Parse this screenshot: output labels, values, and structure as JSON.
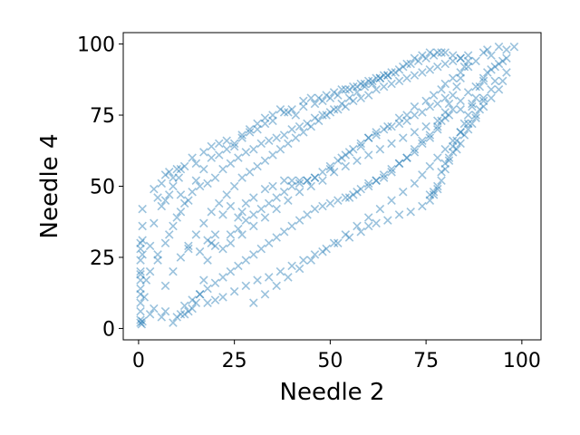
{
  "chart_data": {
    "type": "scatter",
    "title": "",
    "xlabel": "Needle 2",
    "ylabel": "Needle 4",
    "xlim": [
      -4,
      105
    ],
    "ylim": [
      -4,
      104
    ],
    "xticks": [
      0,
      25,
      50,
      75,
      100
    ],
    "yticks": [
      0,
      25,
      50,
      75,
      100
    ],
    "xtick_labels": [
      "0",
      "25",
      "50",
      "75",
      "100"
    ],
    "ytick_labels": [
      "0",
      "25",
      "50",
      "75",
      "100"
    ],
    "grid": false,
    "marker": "x",
    "color": "#1f77b4",
    "alpha": 0.45,
    "points": [
      [
        0.5,
        2
      ],
      [
        0.5,
        3
      ],
      [
        0.8,
        1.5
      ],
      [
        1,
        2.5
      ],
      [
        0.5,
        6
      ],
      [
        0.5,
        9
      ],
      [
        0.5,
        12
      ],
      [
        0.5,
        14
      ],
      [
        0.5,
        17
      ],
      [
        0.5,
        19
      ],
      [
        0.5,
        20
      ],
      [
        0.5,
        24
      ],
      [
        0.5,
        28
      ],
      [
        0.5,
        30
      ],
      [
        1,
        31
      ],
      [
        1,
        36
      ],
      [
        1,
        42
      ],
      [
        1,
        26
      ],
      [
        2,
        17
      ],
      [
        1.5,
        11
      ],
      [
        3,
        5
      ],
      [
        4,
        7
      ],
      [
        5,
        46
      ],
      [
        4,
        49
      ],
      [
        6,
        51
      ],
      [
        7,
        45
      ],
      [
        7,
        54
      ],
      [
        8,
        55
      ],
      [
        9,
        50
      ],
      [
        10,
        56
      ],
      [
        10.5,
        53
      ],
      [
        11,
        47
      ],
      [
        11,
        56
      ],
      [
        6,
        4
      ],
      [
        7,
        6
      ],
      [
        9,
        2
      ],
      [
        10,
        4
      ],
      [
        11,
        5
      ],
      [
        13,
        6
      ],
      [
        15,
        9
      ],
      [
        16,
        12
      ],
      [
        17,
        17
      ],
      [
        18,
        24
      ],
      [
        19,
        30
      ],
      [
        20,
        33
      ],
      [
        22,
        40
      ],
      [
        24,
        43
      ],
      [
        26,
        39
      ],
      [
        27,
        41
      ],
      [
        28,
        44
      ],
      [
        30,
        46
      ],
      [
        33,
        49
      ],
      [
        35,
        50
      ],
      [
        38,
        52
      ],
      [
        40,
        52
      ],
      [
        42,
        52
      ],
      [
        44,
        52
      ],
      [
        46,
        53
      ],
      [
        50,
        56
      ],
      [
        53,
        60
      ],
      [
        55,
        62
      ],
      [
        58,
        64
      ],
      [
        60,
        67
      ],
      [
        62,
        69
      ],
      [
        65,
        71
      ],
      [
        68,
        74
      ],
      [
        70,
        75
      ],
      [
        72,
        78
      ],
      [
        75,
        80
      ],
      [
        77,
        82
      ],
      [
        79,
        84
      ],
      [
        80,
        86
      ],
      [
        82,
        88
      ],
      [
        84,
        90
      ],
      [
        86,
        92
      ],
      [
        88,
        94
      ],
      [
        90,
        97
      ],
      [
        91,
        98
      ],
      [
        92,
        96
      ],
      [
        94,
        99
      ],
      [
        96,
        98
      ],
      [
        98,
        99
      ],
      [
        95,
        94
      ],
      [
        93,
        92
      ],
      [
        91,
        90
      ],
      [
        90,
        87
      ],
      [
        89,
        85
      ],
      [
        88,
        81
      ],
      [
        87,
        78
      ],
      [
        86,
        75
      ],
      [
        85,
        72
      ],
      [
        84,
        69
      ],
      [
        83,
        66
      ],
      [
        82,
        64
      ],
      [
        81,
        60
      ],
      [
        80,
        56
      ],
      [
        79,
        52
      ],
      [
        78,
        49
      ],
      [
        77,
        47
      ],
      [
        76,
        45
      ],
      [
        74,
        43
      ],
      [
        71,
        41
      ],
      [
        68,
        40
      ],
      [
        65,
        38
      ],
      [
        62,
        37
      ],
      [
        60,
        36
      ],
      [
        58,
        34
      ],
      [
        55,
        32
      ],
      [
        52,
        30
      ],
      [
        49,
        28
      ],
      [
        46,
        26
      ],
      [
        43,
        24
      ],
      [
        40,
        22
      ],
      [
        37,
        20
      ],
      [
        34,
        18
      ],
      [
        31,
        17
      ],
      [
        28,
        15
      ],
      [
        25,
        13
      ],
      [
        22,
        11
      ],
      [
        20,
        10
      ],
      [
        18,
        9
      ],
      [
        14,
        7
      ],
      [
        12,
        5
      ],
      [
        3,
        20
      ],
      [
        5,
        24
      ],
      [
        7,
        30
      ],
      [
        9,
        36
      ],
      [
        11,
        41
      ],
      [
        13,
        45
      ],
      [
        15,
        52
      ],
      [
        17,
        56
      ],
      [
        19,
        60
      ],
      [
        21,
        61
      ],
      [
        23,
        63
      ],
      [
        25,
        65
      ],
      [
        27,
        68
      ],
      [
        29,
        69
      ],
      [
        31,
        70
      ],
      [
        33,
        72
      ],
      [
        35,
        73
      ],
      [
        38,
        76
      ],
      [
        40,
        77
      ],
      [
        43,
        78
      ],
      [
        46,
        79
      ],
      [
        48,
        80
      ],
      [
        50,
        81
      ],
      [
        52,
        82
      ],
      [
        54,
        84
      ],
      [
        56,
        85
      ],
      [
        58,
        86
      ],
      [
        60,
        87
      ],
      [
        62,
        88
      ],
      [
        64,
        89
      ],
      [
        66,
        90
      ],
      [
        68,
        91
      ],
      [
        70,
        93
      ],
      [
        72,
        95
      ],
      [
        74,
        96
      ],
      [
        76,
        97
      ],
      [
        78,
        97
      ],
      [
        80,
        97
      ],
      [
        82,
        96
      ],
      [
        84,
        95
      ],
      [
        86,
        94
      ],
      [
        85,
        92
      ],
      [
        84,
        88
      ],
      [
        83,
        85
      ],
      [
        82,
        82
      ],
      [
        81,
        79
      ],
      [
        80,
        76
      ],
      [
        79,
        73
      ],
      [
        78,
        70
      ],
      [
        76,
        67
      ],
      [
        74,
        65
      ],
      [
        72,
        62
      ],
      [
        70,
        60
      ],
      [
        68,
        58
      ],
      [
        66,
        55
      ],
      [
        64,
        54
      ],
      [
        62,
        52
      ],
      [
        60,
        51
      ],
      [
        58,
        49
      ],
      [
        56,
        47
      ],
      [
        54,
        46
      ],
      [
        52,
        45
      ],
      [
        50,
        44
      ],
      [
        48,
        43
      ],
      [
        46,
        42
      ],
      [
        44,
        40
      ],
      [
        42,
        38
      ],
      [
        40,
        36
      ],
      [
        38,
        34
      ],
      [
        36,
        32
      ],
      [
        34,
        30
      ],
      [
        32,
        28
      ],
      [
        30,
        26
      ],
      [
        28,
        24
      ],
      [
        26,
        22
      ],
      [
        24,
        20
      ],
      [
        22,
        18
      ],
      [
        20,
        16
      ],
      [
        18,
        14
      ],
      [
        16,
        12
      ],
      [
        14,
        10
      ],
      [
        12,
        8
      ],
      [
        5,
        26
      ],
      [
        8,
        33
      ],
      [
        10,
        39
      ],
      [
        12,
        44
      ],
      [
        14,
        48
      ],
      [
        16,
        50
      ],
      [
        18,
        51
      ],
      [
        20,
        53
      ],
      [
        22,
        56
      ],
      [
        24,
        58
      ],
      [
        26,
        60
      ],
      [
        28,
        62
      ],
      [
        30,
        63
      ],
      [
        32,
        65
      ],
      [
        34,
        66
      ],
      [
        36,
        67
      ],
      [
        38,
        68
      ],
      [
        40,
        70
      ],
      [
        42,
        71
      ],
      [
        44,
        72
      ],
      [
        46,
        74
      ],
      [
        48,
        75
      ],
      [
        50,
        76
      ],
      [
        52,
        77
      ],
      [
        54,
        78
      ],
      [
        56,
        80
      ],
      [
        58,
        81
      ],
      [
        60,
        82
      ],
      [
        62,
        84
      ],
      [
        64,
        85
      ],
      [
        66,
        86
      ],
      [
        68,
        87
      ],
      [
        70,
        88
      ],
      [
        72,
        89
      ],
      [
        74,
        90
      ],
      [
        76,
        91
      ],
      [
        78,
        92
      ],
      [
        80,
        93
      ],
      [
        82,
        94
      ],
      [
        84,
        95
      ],
      [
        86,
        96
      ],
      [
        30,
        9
      ],
      [
        33,
        12
      ],
      [
        36,
        15
      ],
      [
        39,
        18
      ],
      [
        42,
        21
      ],
      [
        45,
        24
      ],
      [
        48,
        27
      ],
      [
        51,
        30
      ],
      [
        54,
        33
      ],
      [
        57,
        36
      ],
      [
        60,
        39
      ],
      [
        63,
        42
      ],
      [
        66,
        45
      ],
      [
        69,
        48
      ],
      [
        72,
        51
      ],
      [
        74,
        54
      ],
      [
        76,
        57
      ],
      [
        78,
        60
      ],
      [
        80,
        63
      ],
      [
        82,
        66
      ],
      [
        84,
        69
      ],
      [
        86,
        72
      ],
      [
        88,
        75
      ],
      [
        90,
        78
      ],
      [
        92,
        81
      ],
      [
        94,
        84
      ],
      [
        95,
        87
      ],
      [
        96,
        90
      ],
      [
        24,
        30
      ],
      [
        27,
        33
      ],
      [
        30,
        36
      ],
      [
        33,
        39
      ],
      [
        36,
        42
      ],
      [
        39,
        45
      ],
      [
        42,
        48
      ],
      [
        45,
        50
      ],
      [
        48,
        52
      ],
      [
        51,
        55
      ],
      [
        54,
        57
      ],
      [
        57,
        59
      ],
      [
        60,
        61
      ],
      [
        63,
        63
      ],
      [
        66,
        65
      ],
      [
        69,
        67
      ],
      [
        72,
        69
      ],
      [
        75,
        71
      ],
      [
        78,
        73
      ],
      [
        81,
        75
      ],
      [
        84,
        77
      ],
      [
        87,
        79
      ],
      [
        90,
        81
      ],
      [
        92,
        84
      ],
      [
        93,
        87
      ],
      [
        7,
        15
      ],
      [
        9,
        20
      ],
      [
        11,
        25
      ],
      [
        13,
        29
      ],
      [
        15,
        33
      ],
      [
        17,
        37
      ],
      [
        19,
        41
      ],
      [
        21,
        44
      ],
      [
        23,
        47
      ],
      [
        25,
        50
      ],
      [
        27,
        53
      ],
      [
        29,
        55
      ],
      [
        31,
        57
      ],
      [
        33,
        59
      ],
      [
        35,
        61
      ],
      [
        37,
        63
      ],
      [
        39,
        65
      ],
      [
        41,
        67
      ],
      [
        43,
        69
      ],
      [
        45,
        71
      ],
      [
        47,
        73
      ],
      [
        49,
        75
      ],
      [
        51,
        77
      ],
      [
        53,
        79
      ],
      [
        55,
        81
      ],
      [
        57,
        83
      ],
      [
        59,
        85
      ],
      [
        61,
        86
      ],
      [
        63,
        88
      ],
      [
        65,
        89
      ],
      [
        67,
        90
      ],
      [
        69,
        92
      ],
      [
        71,
        93
      ],
      [
        73,
        94
      ],
      [
        75,
        95
      ],
      [
        77,
        96
      ],
      [
        79,
        97
      ],
      [
        3,
        29
      ],
      [
        4,
        37
      ],
      [
        6,
        43
      ],
      [
        8,
        47
      ],
      [
        9,
        53
      ],
      [
        12,
        57
      ],
      [
        14,
        60
      ],
      [
        15,
        58
      ],
      [
        17,
        62
      ],
      [
        19,
        64
      ],
      [
        21,
        65
      ],
      [
        23,
        66
      ],
      [
        25,
        64
      ],
      [
        27,
        67
      ],
      [
        29,
        70
      ],
      [
        31,
        72
      ],
      [
        33,
        74
      ],
      [
        35,
        75
      ],
      [
        37,
        77
      ],
      [
        39,
        76
      ],
      [
        41,
        75
      ],
      [
        43,
        80
      ],
      [
        45,
        81
      ],
      [
        47,
        81
      ],
      [
        49,
        82
      ],
      [
        51,
        83
      ],
      [
        53,
        84
      ],
      [
        55,
        84
      ],
      [
        57,
        85
      ],
      [
        59,
        86
      ],
      [
        61,
        87
      ],
      [
        63,
        88
      ],
      [
        65,
        89
      ],
      [
        55,
        46
      ],
      [
        57,
        48
      ],
      [
        60,
        50
      ],
      [
        62,
        52
      ],
      [
        64,
        53
      ],
      [
        66,
        56
      ],
      [
        68,
        58
      ],
      [
        70,
        60
      ],
      [
        72,
        63
      ],
      [
        74,
        66
      ],
      [
        76,
        68
      ],
      [
        78,
        71
      ],
      [
        80,
        74
      ],
      [
        82,
        77
      ],
      [
        84,
        80
      ],
      [
        86,
        83
      ],
      [
        88,
        85
      ],
      [
        90,
        88
      ],
      [
        92,
        91
      ],
      [
        94,
        93
      ],
      [
        96,
        95
      ],
      [
        13,
        28
      ],
      [
        16,
        27
      ],
      [
        18,
        31
      ],
      [
        20,
        29
      ],
      [
        22,
        28
      ],
      [
        24,
        33
      ],
      [
        26,
        35
      ],
      [
        28,
        38
      ],
      [
        30,
        40
      ],
      [
        32,
        42
      ],
      [
        34,
        44
      ],
      [
        36,
        46
      ],
      [
        38,
        48
      ],
      [
        40,
        50
      ],
      [
        42,
        51
      ],
      [
        44,
        52
      ],
      [
        46,
        53
      ],
      [
        48,
        55
      ],
      [
        50,
        57
      ],
      [
        52,
        59
      ],
      [
        54,
        61
      ],
      [
        56,
        63
      ],
      [
        58,
        65
      ],
      [
        60,
        67
      ],
      [
        62,
        68
      ],
      [
        64,
        70
      ],
      [
        66,
        71
      ],
      [
        68,
        72
      ],
      [
        70,
        73
      ],
      [
        72,
        75
      ],
      [
        74,
        76
      ],
      [
        76,
        78
      ],
      [
        78,
        79
      ],
      [
        80,
        81
      ],
      [
        76,
        47
      ],
      [
        77,
        48
      ],
      [
        78,
        50
      ],
      [
        79,
        55
      ],
      [
        80,
        58
      ],
      [
        81,
        59
      ],
      [
        82,
        62
      ],
      [
        83,
        63
      ],
      [
        84,
        65
      ],
      [
        85,
        68
      ],
      [
        86,
        70
      ],
      [
        87,
        72
      ],
      [
        88,
        74
      ],
      [
        89,
        77
      ],
      [
        90,
        80
      ]
    ]
  }
}
